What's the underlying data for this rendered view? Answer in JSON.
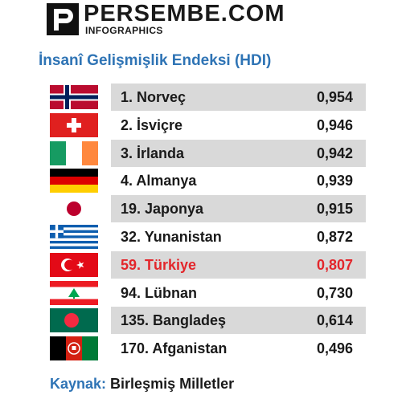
{
  "brand": {
    "name": "PERSEMBE.COM",
    "sub": "INFOGRAPHICS"
  },
  "chart_data": {
    "type": "table",
    "title": "İnsanî Gelişmişlik Endeksi (HDI)",
    "rows": [
      {
        "label": "1. Norveç",
        "value": "0,954",
        "flag": "norway-flag",
        "highlight": false
      },
      {
        "label": "2. İsviçre",
        "value": "0,946",
        "flag": "switzerland-flag",
        "highlight": false
      },
      {
        "label": "3. İrlanda",
        "value": "0,942",
        "flag": "ireland-flag",
        "highlight": false
      },
      {
        "label": "4. Almanya",
        "value": "0,939",
        "flag": "germany-flag",
        "highlight": false
      },
      {
        "label": "19. Japonya",
        "value": "0,915",
        "flag": "japan-flag",
        "highlight": false
      },
      {
        "label": "32. Yunanistan",
        "value": "0,872",
        "flag": "greece-flag",
        "highlight": false
      },
      {
        "label": "59. Türkiye",
        "value": "0,807",
        "flag": "turkey-flag",
        "highlight": true
      },
      {
        "label": "94. Lübnan",
        "value": "0,730",
        "flag": "lebanon-flag",
        "highlight": false
      },
      {
        "label": "135. Bangladeş",
        "value": "0,614",
        "flag": "bangladesh-flag",
        "highlight": false
      },
      {
        "label": "170. Afganistan",
        "value": "0,496",
        "flag": "afghanistan-flag",
        "highlight": false
      }
    ],
    "highlight_color": "#e3262b",
    "row_shade_color": "#d9d9d9",
    "title_color": "#2f74b5"
  },
  "source": {
    "key": "Kaynak:",
    "value": "Birleşmiş Milletler"
  }
}
